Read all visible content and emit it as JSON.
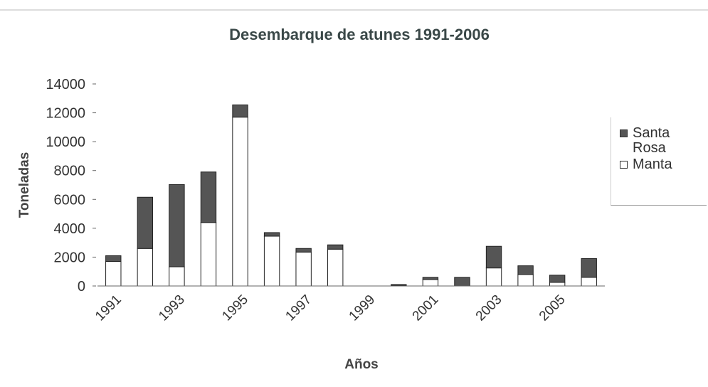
{
  "chart_data": {
    "type": "bar",
    "stacked": true,
    "title": "Desembarque de atunes 1991-2006",
    "x_label": "Años",
    "y_label": "Toneladas",
    "categories": [
      "1991",
      null,
      "1993",
      null,
      "1995",
      null,
      "1997",
      null,
      "1999",
      null,
      "2001",
      null,
      "2003",
      null,
      "2005",
      null
    ],
    "series": [
      {
        "name": "Manta",
        "color": "#ffffff",
        "values": [
          1700,
          2600,
          1330,
          4400,
          11700,
          3450,
          2350,
          2550,
          0,
          50,
          450,
          0,
          1250,
          800,
          250,
          600
        ]
      },
      {
        "name": "Santa Rosa",
        "color": "#555555",
        "values": [
          400,
          3550,
          5700,
          3500,
          850,
          250,
          250,
          300,
          0,
          50,
          150,
          600,
          1500,
          600,
          500,
          1300
        ]
      }
    ],
    "ylim": [
      0,
      14000
    ],
    "yticks": [
      0,
      2000,
      4000,
      6000,
      8000,
      10000,
      12000,
      14000
    ],
    "grid": false,
    "legend": "right"
  }
}
